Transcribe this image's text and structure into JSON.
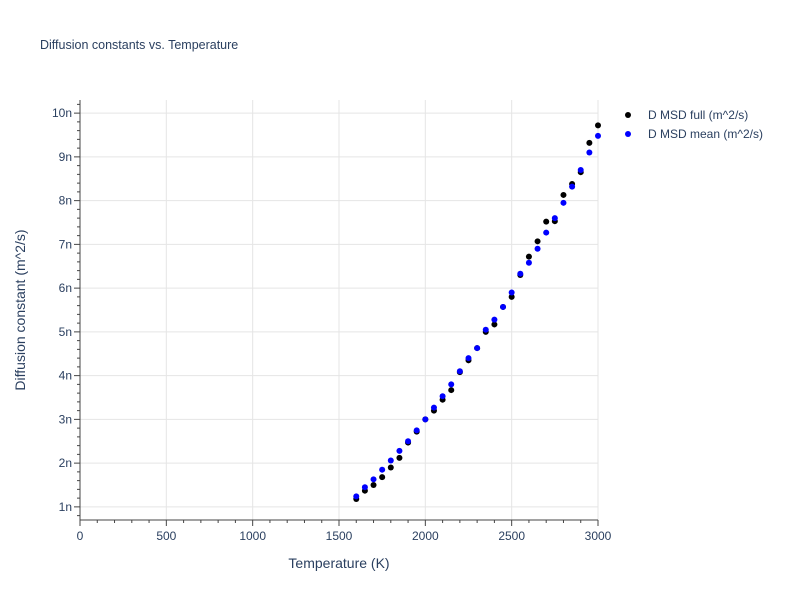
{
  "chart_data": {
    "type": "scatter",
    "title": "Diffusion constants vs. Temperature",
    "xlabel": "Temperature (K)",
    "ylabel": "Diffusion constant (m^2/s)",
    "xlim": [
      0,
      3000
    ],
    "ylim": [
      0.7,
      10.3
    ],
    "x_ticks": [
      0,
      500,
      1000,
      1500,
      2000,
      2500,
      3000
    ],
    "x_tick_labels": [
      "0",
      "500",
      "1000",
      "1500",
      "2000",
      "2500",
      "3000"
    ],
    "y_ticks": [
      1,
      2,
      3,
      4,
      5,
      6,
      7,
      8,
      9,
      10
    ],
    "y_tick_labels": [
      "1n",
      "2n",
      "3n",
      "4n",
      "5n",
      "6n",
      "7n",
      "8n",
      "9n",
      "10n"
    ],
    "y_unit_multiplier": "1e-9",
    "grid": true,
    "legend_position": "top-right",
    "x": [
      1600,
      1650,
      1700,
      1750,
      1800,
      1850,
      1900,
      1950,
      2000,
      2050,
      2100,
      2150,
      2200,
      2250,
      2300,
      2350,
      2400,
      2450,
      2500,
      2550,
      2600,
      2650,
      2700,
      2750,
      2800,
      2850,
      2900,
      2950,
      3000
    ],
    "series": [
      {
        "name": "D MSD full (m^2/s)",
        "color": "#000000",
        "values": [
          1.18,
          1.37,
          1.5,
          1.68,
          1.9,
          2.12,
          2.47,
          2.72,
          3.0,
          3.2,
          3.45,
          3.67,
          4.08,
          4.35,
          4.63,
          5.0,
          5.17,
          5.57,
          5.8,
          6.3,
          6.72,
          7.07,
          7.52,
          7.53,
          8.13,
          8.38,
          8.65,
          9.32,
          9.72
        ]
      },
      {
        "name": "D MSD mean (m^2/s)",
        "color": "#0000ff",
        "values": [
          1.24,
          1.45,
          1.63,
          1.85,
          2.06,
          2.28,
          2.5,
          2.75,
          3.0,
          3.27,
          3.53,
          3.8,
          4.1,
          4.4,
          4.63,
          5.05,
          5.28,
          5.57,
          5.9,
          6.33,
          6.58,
          6.9,
          7.27,
          7.6,
          7.95,
          8.32,
          8.7,
          9.1,
          9.48
        ]
      }
    ]
  }
}
